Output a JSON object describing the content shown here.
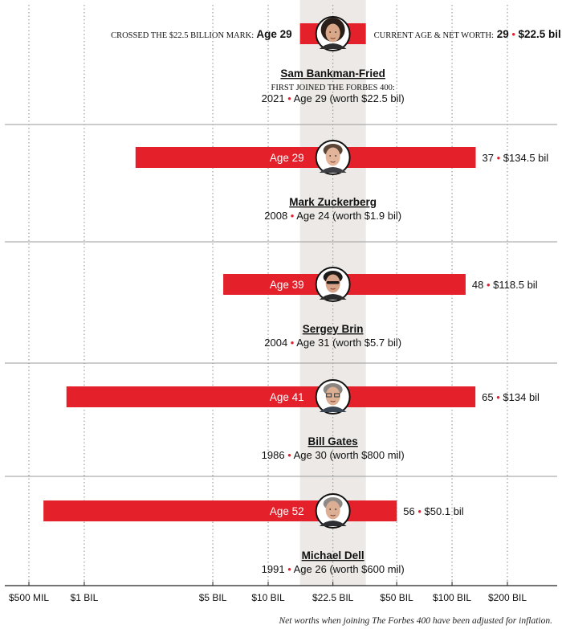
{
  "chart_data": {
    "type": "bar",
    "scale": "log",
    "xlim_label_range": [
      "$500 MIL",
      "$200 BIL"
    ],
    "ticks": [
      {
        "label": "$500 MIL",
        "value": 0.5
      },
      {
        "label": "$1 BIL",
        "value": 1
      },
      {
        "label": "$5 BIL",
        "value": 5
      },
      {
        "label": "$10 BIL",
        "value": 10
      },
      {
        "label": "$22.5 BIL",
        "value": 22.5
      },
      {
        "label": "$50 BIL",
        "value": 50
      },
      {
        "label": "$100 BIL",
        "value": 100
      },
      {
        "label": "$200 BIL",
        "value": 200
      }
    ],
    "highlight_value": 22.5,
    "grid": true,
    "header_left_text": "CROSSED THE $22.5 BILLION MARK:",
    "header_right_text": "CURRENT AGE & NET WORTH:",
    "first_joined_label": "FIRST JOINED THE FORBES 400:",
    "footnote": "Net worths when joining The Forbes 400 have been adjusted for inflation.",
    "colors": {
      "bar": "#e4202b",
      "highlight_band": "#ece9e6",
      "grid": "#8a8a8a",
      "dot": "#e4202b"
    },
    "people": [
      {
        "name": "Sam Bankman-Fried",
        "photo_icon": "sam-bankman-fried-photo",
        "start_worth": 22.5,
        "current_worth": 22.5,
        "age_crossed": "Age 29",
        "current_age": "29",
        "current_worth_label": "$22.5 bil",
        "join_year": "2021",
        "join_detail": "Age 29 (worth $22.5 bil)"
      },
      {
        "name": "Mark Zuckerberg",
        "photo_icon": "mark-zuckerberg-photo",
        "start_worth": 1.9,
        "current_worth": 134.5,
        "age_crossed": "Age 29",
        "current_age": "37",
        "current_worth_label": "$134.5 bil",
        "join_year": "2008",
        "join_detail": "Age 24 (worth $1.9 bil)"
      },
      {
        "name": "Sergey Brin",
        "photo_icon": "sergey-brin-photo",
        "start_worth": 5.7,
        "current_worth": 118.5,
        "age_crossed": "Age 39",
        "current_age": "48",
        "current_worth_label": "$118.5 bil",
        "join_year": "2004",
        "join_detail": "Age 31 (worth $5.7 bil)"
      },
      {
        "name": "Bill Gates",
        "photo_icon": "bill-gates-photo",
        "start_worth": 0.8,
        "current_worth": 134,
        "age_crossed": "Age 41",
        "current_age": "65",
        "current_worth_label": "$134 bil",
        "join_year": "1986",
        "join_detail": "Age 30 (worth $800 mil)"
      },
      {
        "name": "Michael Dell",
        "photo_icon": "michael-dell-photo",
        "start_worth": 0.6,
        "current_worth": 50.1,
        "age_crossed": "Age 52",
        "current_age": "56",
        "current_worth_label": "$50.1 bil",
        "join_year": "1991",
        "join_detail": "Age 26 (worth $600 mil)"
      }
    ]
  }
}
